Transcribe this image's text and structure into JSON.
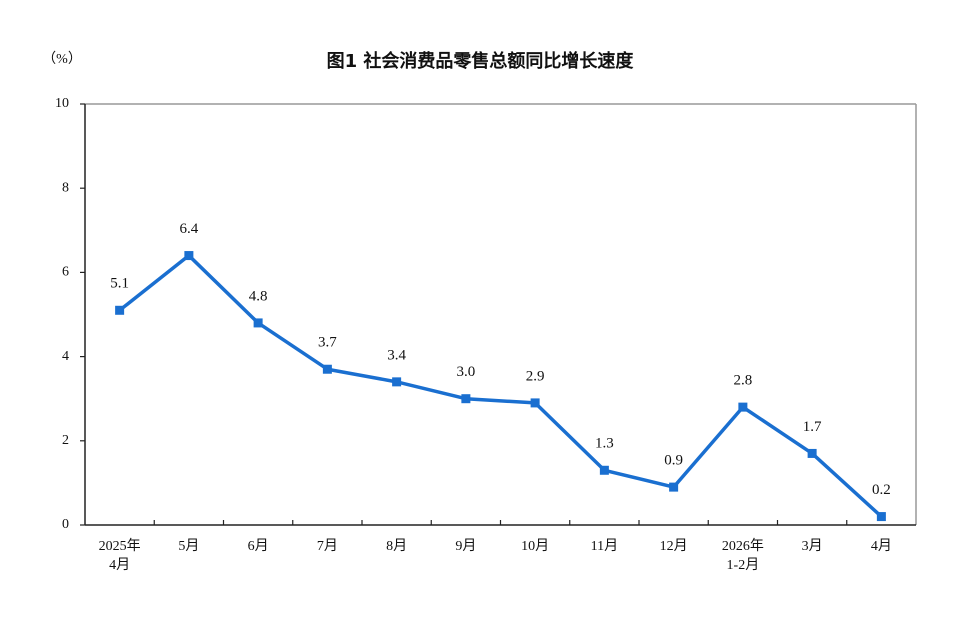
{
  "chart_data": {
    "type": "line",
    "title": "图1  社会消费品零售总额同比增长速度",
    "y_label": "（%）",
    "categories": [
      [
        "2025年",
        "4月"
      ],
      [
        "5月"
      ],
      [
        "6月"
      ],
      [
        "7月"
      ],
      [
        "8月"
      ],
      [
        "9月"
      ],
      [
        "10月"
      ],
      [
        "11月"
      ],
      [
        "12月"
      ],
      [
        "2026年",
        "1-2月"
      ],
      [
        "3月"
      ],
      [
        "4月"
      ]
    ],
    "values": [
      5.1,
      6.4,
      4.8,
      3.7,
      3.4,
      3.0,
      2.9,
      1.3,
      0.9,
      2.8,
      1.7,
      0.2
    ],
    "value_labels": [
      "5.1",
      "6.4",
      "4.8",
      "3.7",
      "3.4",
      "3.0",
      "2.9",
      "1.3",
      "0.9",
      "2.8",
      "1.7",
      "0.2"
    ],
    "color": "#1a6fd0",
    "ylim": [
      0,
      10
    ],
    "yticks": [
      0,
      2,
      4,
      6,
      8,
      10
    ]
  }
}
